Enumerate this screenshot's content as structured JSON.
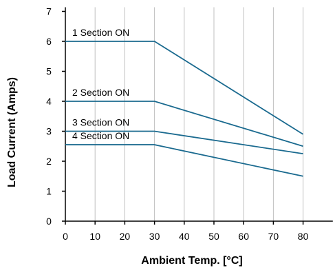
{
  "chart_data": {
    "type": "line",
    "xlabel": "Ambient Temp. [°C]",
    "ylabel": "Load Current (Amps)",
    "xlim": [
      0,
      90
    ],
    "ylim": [
      0,
      7
    ],
    "x_ticks": [
      0,
      10,
      20,
      30,
      40,
      50,
      60,
      70,
      80
    ],
    "y_ticks": [
      0,
      1,
      2,
      3,
      4,
      5,
      6,
      7
    ],
    "grid": true,
    "line_color": "#1a6a8f",
    "series": [
      {
        "name": "1 Section ON",
        "x": [
          0,
          30,
          80
        ],
        "y": [
          6.0,
          6.0,
          2.9
        ]
      },
      {
        "name": "2 Section ON",
        "x": [
          0,
          30,
          80
        ],
        "y": [
          4.0,
          4.0,
          2.5
        ]
      },
      {
        "name": "3 Section ON",
        "x": [
          0,
          30,
          80
        ],
        "y": [
          3.0,
          3.0,
          2.25
        ]
      },
      {
        "name": "4 Section ON",
        "x": [
          0,
          30,
          80
        ],
        "y": [
          2.55,
          2.55,
          1.5
        ]
      }
    ]
  }
}
